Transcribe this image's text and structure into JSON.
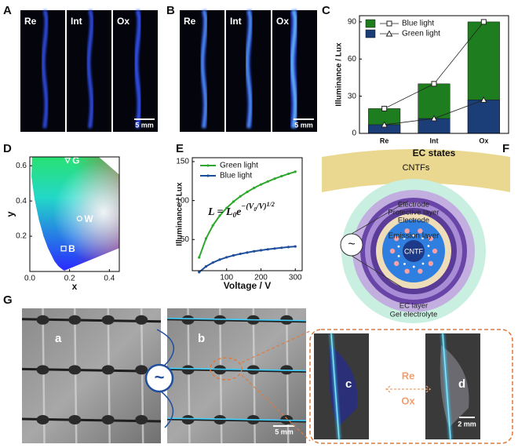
{
  "panel_labels": [
    "A",
    "B",
    "C",
    "D",
    "E",
    "F",
    "G"
  ],
  "panel_a": {
    "labels": [
      "Re",
      "Int",
      "Ox"
    ],
    "scale_bar": "5 mm"
  },
  "panel_b": {
    "labels": [
      "Re",
      "Int",
      "Ox"
    ],
    "scale_bar": "5 mm"
  },
  "chart_data": [
    {
      "type": "bar",
      "categories": [
        "Re",
        "Int",
        "Ox"
      ],
      "series": [
        {
          "name": "Blue light",
          "color": "#1e7d1e",
          "marker": "square",
          "values": [
            20,
            40,
            90
          ]
        },
        {
          "name": "Green light",
          "color": "#1b3e78",
          "marker": "triangle",
          "values": [
            7,
            12,
            27
          ]
        }
      ],
      "ylim": [
        0,
        95
      ],
      "yticks": [
        0,
        30,
        60,
        90
      ],
      "xlabel": "EC states",
      "ylabel": "Illuminance / Lux",
      "legend": "upper left"
    },
    {
      "type": "scatter",
      "x": [
        0.19,
        0.25,
        0.17
      ],
      "values": [
        0.63,
        0.3,
        0.13
      ],
      "point_labels": [
        "G",
        "W",
        "B"
      ],
      "xlim": [
        0,
        0.45
      ],
      "ylim": [
        0,
        0.65
      ],
      "xticks": [
        {
          "value": 0,
          "label": "0.0"
        },
        0.2,
        0.4
      ],
      "yticks": [
        0.2,
        0.4,
        0.6
      ],
      "xlabel": "x",
      "ylabel": "y"
    },
    {
      "type": "line",
      "x": [
        20,
        40,
        60,
        80,
        100,
        120,
        140,
        160,
        180,
        200,
        220,
        240,
        260,
        280,
        300
      ],
      "series": [
        {
          "name": "Green light",
          "color": "#2fa82f",
          "values": [
            27,
            51.3,
            68.1,
            80.7,
            90.5,
            98.6,
            105.4,
            111.1,
            116.2,
            120.6,
            124.5,
            128.1,
            131.3,
            134.3,
            137
          ]
        },
        {
          "name": "Blue light",
          "color": "#1f4e9c",
          "values": [
            8.1,
            15.4,
            20.4,
            24.2,
            27.2,
            29.6,
            31.6,
            33.3,
            34.9,
            36.2,
            37.4,
            38.4,
            39.4,
            40.3,
            41.1
          ]
        }
      ],
      "xlim": [
        0,
        320
      ],
      "ylim": [
        10,
        155
      ],
      "xticks": [
        100,
        200,
        300
      ],
      "yticks": [
        50,
        100,
        150
      ],
      "xlabel": "Voltage / V",
      "ylabel": "Illuminance / Lux",
      "legend": "upper left",
      "formula": [
        "L = L",
        "0",
        "e",
        "−(V",
        "0",
        "/V)",
        "1/2"
      ]
    }
  ],
  "panel_f": {
    "cntfs": "CNTFs",
    "layers": [
      "Electrode",
      "Protective layer",
      "Electrode",
      "Emission layer",
      "CNTF",
      "EC layer",
      "Gel electrolyte"
    ],
    "source": "~"
  },
  "panel_g": {
    "photo_labels": [
      "a",
      "b",
      "c",
      "d"
    ],
    "source": "~",
    "switch": [
      "Re",
      "Ox"
    ],
    "scale_bars": [
      "5 mm",
      "2 mm"
    ]
  }
}
